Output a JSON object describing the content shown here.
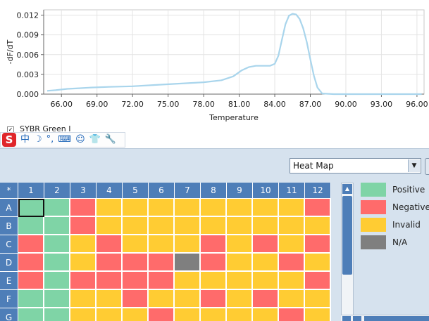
{
  "chart_data": {
    "type": "line",
    "title": "",
    "xlabel": "Temperature",
    "ylabel": "-dF/dT",
    "x_ticks": [
      "66.00",
      "69.00",
      "72.00",
      "75.00",
      "78.00",
      "81.00",
      "84.00",
      "87.00",
      "90.00",
      "93.00",
      "96.00"
    ],
    "y_ticks": [
      "0.000",
      "0.003",
      "0.006",
      "0.009",
      "0.012"
    ],
    "xlim": [
      64.5,
      96.6
    ],
    "ylim": [
      0,
      0.0128
    ],
    "grid": true,
    "legend": "none",
    "series": [
      {
        "color": "#a9d5ec",
        "x": [
          64.8,
          65.5,
          66.5,
          67.5,
          68.5,
          70.0,
          72.0,
          74.0,
          76.0,
          78.0,
          79.5,
          80.5,
          81.2,
          81.8,
          82.4,
          83.0,
          83.6,
          84.0,
          84.3,
          84.6,
          84.9,
          85.2,
          85.5,
          85.8,
          86.1,
          86.4,
          86.7,
          87.0,
          87.3,
          87.6,
          88.0,
          89.0,
          92.0,
          96.4
        ],
        "y": [
          0.0005,
          0.0006,
          0.0008,
          0.0009,
          0.001,
          0.0011,
          0.0012,
          0.0014,
          0.0016,
          0.0018,
          0.0021,
          0.0027,
          0.0036,
          0.0041,
          0.0043,
          0.0043,
          0.0043,
          0.0046,
          0.0058,
          0.0082,
          0.0106,
          0.0119,
          0.0122,
          0.0121,
          0.0114,
          0.01,
          0.0079,
          0.0053,
          0.0028,
          0.001,
          0.0001,
          0.0,
          0.0,
          0.0
        ]
      }
    ]
  },
  "channel": {
    "label": "SYBR Green I",
    "checked": true
  },
  "ime_bar": {
    "logo": "S",
    "icons": [
      {
        "name": "chinese-mode-icon",
        "glyph": "中"
      },
      {
        "name": "moon-icon",
        "glyph": "☽"
      },
      {
        "name": "punctuation-icon",
        "glyph": "°,"
      },
      {
        "name": "keyboard-icon",
        "glyph": "⌨"
      },
      {
        "name": "user-icon",
        "glyph": "☺"
      },
      {
        "name": "shirt-icon",
        "glyph": "👕"
      },
      {
        "name": "wrench-icon",
        "glyph": "🔧"
      }
    ]
  },
  "view_select": {
    "value": "Heat Map"
  },
  "grid": {
    "corner": "*",
    "columns": [
      "1",
      "2",
      "3",
      "4",
      "5",
      "6",
      "7",
      "8",
      "9",
      "10",
      "11",
      "12"
    ],
    "rows": [
      "A",
      "B",
      "C",
      "D",
      "E",
      "F",
      "G"
    ],
    "selected_well": "A1",
    "wells": [
      [
        "P",
        "P",
        "N",
        "I",
        "I",
        "I",
        "I",
        "I",
        "I",
        "I",
        "I",
        "N"
      ],
      [
        "P",
        "P",
        "N",
        "I",
        "I",
        "I",
        "I",
        "I",
        "I",
        "I",
        "I",
        "I"
      ],
      [
        "N",
        "P",
        "I",
        "N",
        "I",
        "I",
        "I",
        "N",
        "I",
        "N",
        "I",
        "N"
      ],
      [
        "N",
        "P",
        "I",
        "N",
        "N",
        "N",
        "X",
        "N",
        "I",
        "I",
        "N",
        "I"
      ],
      [
        "N",
        "P",
        "N",
        "N",
        "N",
        "N",
        "I",
        "I",
        "I",
        "I",
        "I",
        "N"
      ],
      [
        "P",
        "P",
        "I",
        "I",
        "N",
        "I",
        "I",
        "N",
        "I",
        "N",
        "I",
        "I"
      ],
      [
        "P",
        "P",
        "I",
        "I",
        "I",
        "N",
        "I",
        "I",
        "I",
        "I",
        "N",
        "I"
      ]
    ]
  },
  "legend": [
    {
      "key": "P",
      "label": "Positive",
      "color": "#7fd4a6"
    },
    {
      "key": "N",
      "label": "Negative",
      "color": "#ff6b6b"
    },
    {
      "key": "I",
      "label": "Invalid",
      "color": "#ffcc33"
    },
    {
      "key": "X",
      "label": "N/A",
      "color": "#7f7f7f"
    }
  ],
  "colors": {
    "header": "#4e7eb8",
    "panel": "#d6e2ee",
    "curve": "#a9d5ec"
  }
}
